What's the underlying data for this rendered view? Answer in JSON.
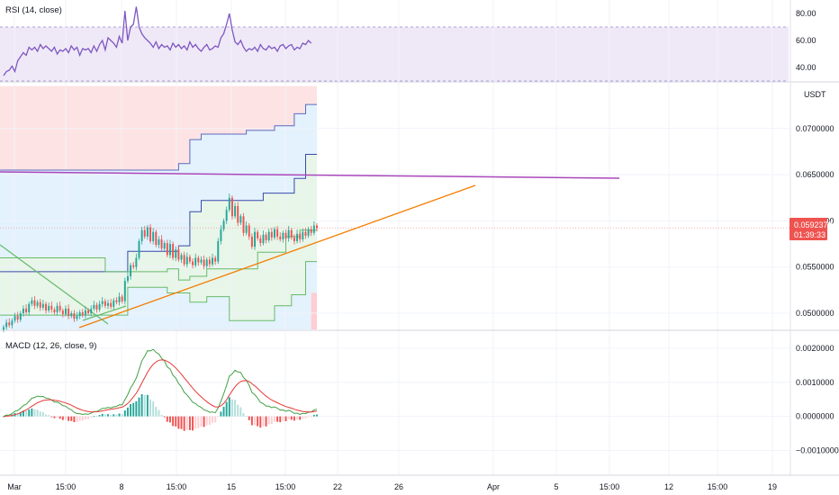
{
  "chart_data": {
    "type": "candlestick",
    "quote_currency": "USDT",
    "panes": {
      "rsi": {
        "title": "RSI (14, close)",
        "ticks": [
          "80.00",
          "60.00",
          "40.00"
        ],
        "tick_values": [
          80,
          60,
          40
        ],
        "band": [
          30,
          70
        ],
        "ylim": [
          30,
          90
        ],
        "values": [
          34,
          37,
          38,
          41,
          37,
          45,
          48,
          51,
          49,
          55,
          53,
          55,
          52,
          57,
          54,
          56,
          54,
          52,
          55,
          50,
          53,
          52,
          54,
          51,
          56,
          53,
          55,
          49,
          54,
          53,
          54,
          51,
          56,
          52,
          57,
          60,
          53,
          62,
          60,
          58,
          55,
          63,
          58,
          82,
          60,
          70,
          72,
          85,
          70,
          65,
          62,
          60,
          58,
          55,
          59,
          54,
          57,
          55,
          56,
          53,
          58,
          55,
          57,
          54,
          56,
          53,
          59,
          55,
          57,
          54,
          52,
          55,
          57,
          53,
          54,
          56,
          55,
          62,
          65,
          72,
          80,
          68,
          59,
          57,
          60,
          55,
          52,
          54,
          53,
          55,
          52,
          57,
          54,
          53,
          56,
          54,
          55,
          52,
          56,
          57,
          54,
          56,
          57,
          53,
          55,
          54,
          58,
          57,
          60,
          58
        ]
      },
      "price": {
        "current_price": "0.0592373",
        "countdown": "01:39:33",
        "current_value": 0.0592373,
        "ticks": [
          "0.0700000",
          "0.0650000",
          "0.0600000",
          "0.0550000",
          "0.0500000"
        ],
        "tick_values": [
          0.07,
          0.065,
          0.06,
          0.055,
          0.05
        ],
        "ylim": [
          0.04825,
          0.07495
        ],
        "close": [
          0.0485,
          0.049,
          0.0487,
          0.0492,
          0.0497,
          0.0493,
          0.05,
          0.0505,
          0.0501,
          0.051,
          0.0514,
          0.0508,
          0.0512,
          0.0506,
          0.051,
          0.0503,
          0.0508,
          0.0504,
          0.0501,
          0.0508,
          0.0503,
          0.0499,
          0.0505,
          0.0497,
          0.05,
          0.0494,
          0.0497,
          0.0501,
          0.0498,
          0.0503,
          0.05,
          0.0505,
          0.0509,
          0.0504,
          0.051,
          0.0513,
          0.0508,
          0.0511,
          0.0507,
          0.0514,
          0.0512,
          0.0518,
          0.0513,
          0.0535,
          0.054,
          0.0552,
          0.055,
          0.056,
          0.0578,
          0.059,
          0.0583,
          0.0593,
          0.0578,
          0.0588,
          0.0574,
          0.058,
          0.057,
          0.0576,
          0.0563,
          0.0575,
          0.056,
          0.0569,
          0.0558,
          0.0563,
          0.0553,
          0.0561,
          0.0556,
          0.0552,
          0.056,
          0.0555,
          0.0558,
          0.0551,
          0.0558,
          0.0553,
          0.056,
          0.0556,
          0.0578,
          0.0591,
          0.06,
          0.0612,
          0.0625,
          0.0605,
          0.0616,
          0.0598,
          0.0605,
          0.0587,
          0.0595,
          0.0583,
          0.0572,
          0.0588,
          0.0581,
          0.0576,
          0.0585,
          0.0579,
          0.0588,
          0.0582,
          0.0591,
          0.0583,
          0.058,
          0.0587,
          0.0581,
          0.059,
          0.0582,
          0.0578,
          0.0586,
          0.058,
          0.0588,
          0.0584,
          0.0591,
          0.0587,
          0.0595,
          0.0592
        ]
      },
      "macd": {
        "title": "MACD (12, 26, close, 9)",
        "ticks": [
          "0.0020000",
          "0.0010000",
          "0.0000000",
          "−0.0010000"
        ],
        "tick_values": [
          0.002,
          0.001,
          0.0,
          -0.001
        ],
        "ylim": [
          -0.0017,
          0.0025
        ]
      }
    },
    "x_ticks": [
      "Mar",
      "15:00",
      "8",
      "15:00",
      "15",
      "15:00",
      "22",
      "26",
      "Apr",
      "5",
      "15:00",
      "12",
      "15:00",
      "19"
    ],
    "colors": {
      "up": "#26a69a",
      "down": "#ef5350",
      "rsi_line": "#7e57c2",
      "macd_line": "#43a047",
      "signal_line": "#e53935",
      "horizontal_line": "#ab47bc",
      "trend_line": "#f57c00",
      "downtrend_line": "#66bb6a",
      "price_tag": "#ef5350"
    }
  }
}
